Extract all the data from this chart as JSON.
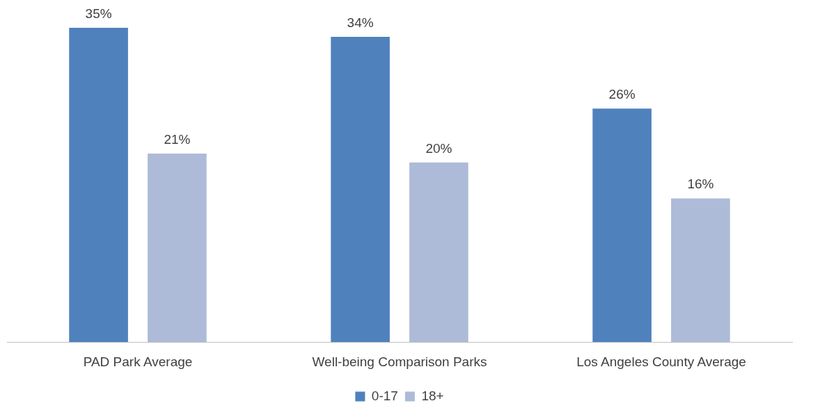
{
  "chart_data": {
    "type": "bar",
    "categories": [
      "PAD Park Average",
      "Well-being Comparison Parks",
      "Los Angeles County Average"
    ],
    "series": [
      {
        "name": "0-17",
        "color": "#4f81bd",
        "values": [
          35,
          34,
          26
        ],
        "value_labels": [
          "35%",
          "34%",
          "26%"
        ]
      },
      {
        "name": "18+",
        "color": "#adbbd8",
        "values": [
          21,
          20,
          16
        ],
        "value_labels": [
          "21%",
          "20%",
          "16%"
        ]
      }
    ],
    "grid": false,
    "legend": "bottom",
    "tick_labels": "x"
  }
}
